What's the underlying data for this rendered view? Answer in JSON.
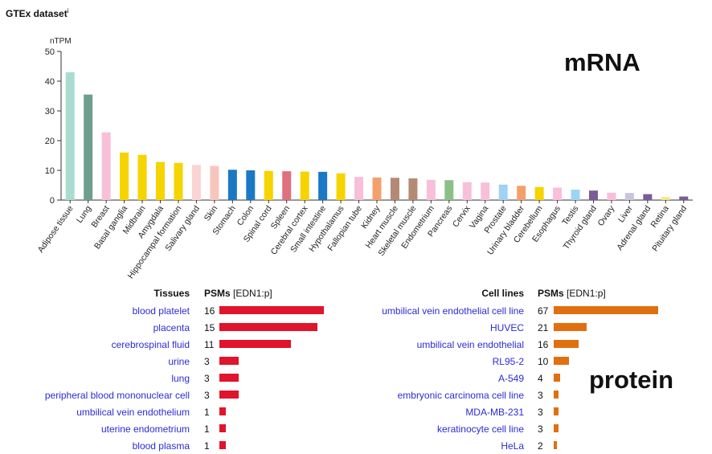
{
  "header": {
    "title": "GTEx dataset",
    "info_mark": "i"
  },
  "labels": {
    "mrna": "mRNA",
    "protein": "protein"
  },
  "chart_data": {
    "type": "bar",
    "ylabel": "nTPM",
    "ylim": [
      0,
      50
    ],
    "yticks": [
      0,
      10,
      20,
      30,
      40,
      50
    ],
    "categories": [
      "Adipose tissue",
      "Lung",
      "Breast",
      "Basal ganglia",
      "Midbrain",
      "Amygdala",
      "Hippocampal formation",
      "Salivary gland",
      "Skin",
      "Stomach",
      "Colon",
      "Spinal cord",
      "Spleen",
      "Cerebral cortex",
      "Small intestine",
      "Hypothalamus",
      "Fallopian tube",
      "Kidney",
      "Heart muscle",
      "Skeletal muscle",
      "Endometrium",
      "Pancreas",
      "Cervix",
      "Vagina",
      "Prostate",
      "Urinary bladder",
      "Cerebellum",
      "Esophagus",
      "Testis",
      "Thyroid gland",
      "Ovary",
      "Liver",
      "Adrenal gland",
      "Retina",
      "Pituitary gland"
    ],
    "values": [
      43.0,
      35.5,
      22.8,
      16.0,
      15.2,
      12.8,
      12.5,
      11.8,
      11.5,
      10.2,
      10.0,
      9.8,
      9.7,
      9.6,
      9.5,
      9.0,
      7.8,
      7.6,
      7.5,
      7.3,
      6.8,
      6.7,
      6.0,
      5.9,
      5.2,
      4.8,
      4.4,
      4.2,
      3.5,
      3.2,
      2.5,
      2.4,
      2.0,
      1.0,
      1.2
    ],
    "colors": [
      "#a8dccf",
      "#6e9e8e",
      "#f7c0d8",
      "#f5d400",
      "#f5d400",
      "#f5d400",
      "#f5d400",
      "#fad3d3",
      "#f6c6bd",
      "#1b78c4",
      "#1b78c4",
      "#f5d400",
      "#e0707e",
      "#f5d400",
      "#1b78c4",
      "#f5d400",
      "#f7c0d8",
      "#f4a06e",
      "#b48a75",
      "#b48a75",
      "#f7c0d8",
      "#8cbf87",
      "#f7c0d8",
      "#f7c0d8",
      "#9ed3f2",
      "#f4a06e",
      "#f5d400",
      "#f7c0d8",
      "#9ed3f2",
      "#7a5c96",
      "#f7c0d8",
      "#c8c6dc",
      "#7a5c96",
      "#f5e580",
      "#7a5c96"
    ]
  },
  "tissues_table": {
    "header_label": "Tissues",
    "header_psm": "PSMs",
    "header_gene": "[EDN1:p]",
    "bar_color": "#e0142a",
    "max_value": 16,
    "rows": [
      {
        "label": "blood platelet",
        "value": 16
      },
      {
        "label": "placenta",
        "value": 15
      },
      {
        "label": "cerebrospinal fluid",
        "value": 11
      },
      {
        "label": "urine",
        "value": 3
      },
      {
        "label": "lung",
        "value": 3
      },
      {
        "label": "peripheral blood mononuclear cell",
        "value": 3
      },
      {
        "label": "umbilical vein endothelium",
        "value": 1
      },
      {
        "label": "uterine endometrium",
        "value": 1
      },
      {
        "label": "blood plasma",
        "value": 1
      }
    ]
  },
  "celllines_table": {
    "header_label": "Cell lines",
    "header_psm": "PSMs",
    "header_gene": "[EDN1:p]",
    "bar_color": "#e0700f",
    "max_value": 67,
    "rows": [
      {
        "label": "umbilical vein endothelial cell line",
        "value": 67
      },
      {
        "label": "HUVEC",
        "value": 21
      },
      {
        "label": "umbilical vein endothelial",
        "value": 16
      },
      {
        "label": "RL95-2",
        "value": 10
      },
      {
        "label": "A-549",
        "value": 4
      },
      {
        "label": "embryonic carcinoma cell line",
        "value": 3
      },
      {
        "label": "MDA-MB-231",
        "value": 3
      },
      {
        "label": "keratinocyte cell line",
        "value": 3
      },
      {
        "label": "HeLa",
        "value": 2
      }
    ]
  }
}
